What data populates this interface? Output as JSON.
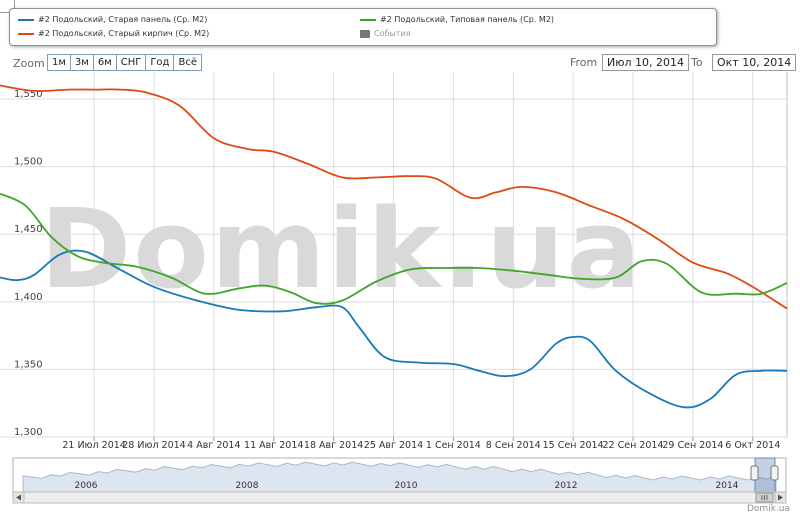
{
  "legend": {
    "items": [
      {
        "label": "#2 Подольский, Старая панель (Ср. M2)",
        "color": "#1a7ab8"
      },
      {
        "label": "#2 Подольский, Старый кирпич (Ср. M2)",
        "color": "#de4a12"
      },
      {
        "label": "#2 Подольский, Типовая панель (Ср. M2)",
        "color": "#3fa62a"
      },
      {
        "label": "События",
        "color": "#777777"
      }
    ]
  },
  "zoom": {
    "label": "Zoom",
    "buttons": [
      "1м",
      "3м",
      "6м",
      "СНГ",
      "Год",
      "Всё"
    ]
  },
  "range": {
    "from_label": "From",
    "from_value": "Июл 10, 2014",
    "to_label": "To",
    "to_value": "Окт 10, 2014"
  },
  "watermark": "Domik.ua",
  "credit": "Domik.ua",
  "colors": {
    "old_panel": "#1a7ab8",
    "old_brick": "#de4a12",
    "typical_panel": "#3fa62a",
    "grid": "#d8d8d8",
    "navigator_fill": "#dde5f0"
  },
  "chart_data": {
    "type": "line",
    "title": "",
    "xlabel": "",
    "ylabel": "",
    "ylim": [
      1.3,
      1.57
    ],
    "yticks": [
      1.3,
      1.35,
      1.4,
      1.45,
      1.5,
      1.55
    ],
    "ytick_labels": [
      "1,300",
      "1,350",
      "1,400",
      "1,450",
      "1,500",
      "1,550"
    ],
    "xlim": [
      "2014-07-10",
      "2014-10-10"
    ],
    "xticks": [
      {
        "date": "2014-07-21",
        "label": "21 Июл 2014"
      },
      {
        "date": "2014-07-28",
        "label": "28 Июл 2014"
      },
      {
        "date": "2014-08-04",
        "label": "4 Авг 2014"
      },
      {
        "date": "2014-08-11",
        "label": "11 Авг 2014"
      },
      {
        "date": "2014-08-18",
        "label": "18 Авг 2014"
      },
      {
        "date": "2014-08-25",
        "label": "25 Авг 2014"
      },
      {
        "date": "2014-09-01",
        "label": "1 Сен 2014"
      },
      {
        "date": "2014-09-08",
        "label": "8 Сен 2014"
      },
      {
        "date": "2014-09-15",
        "label": "15 Сен 2014"
      },
      {
        "date": "2014-09-22",
        "label": "22 Сен 2014"
      },
      {
        "date": "2014-09-29",
        "label": "29 Сен 2014"
      },
      {
        "date": "2014-10-06",
        "label": "6 Окт 2014"
      }
    ],
    "grid": true,
    "series": [
      {
        "name": "#2 Подольский, Старая панель (Ср. M2)",
        "color": "#1a7ab8",
        "x": [
          "2014-07-10",
          "2014-07-12",
          "2014-07-14",
          "2014-07-17",
          "2014-07-20",
          "2014-07-24",
          "2014-07-28",
          "2014-08-02",
          "2014-08-07",
          "2014-08-12",
          "2014-08-16",
          "2014-08-19",
          "2014-08-21",
          "2014-08-24",
          "2014-08-28",
          "2014-09-01",
          "2014-09-04",
          "2014-09-07",
          "2014-09-10",
          "2014-09-13",
          "2014-09-15",
          "2014-09-17",
          "2014-09-20",
          "2014-09-24",
          "2014-09-28",
          "2014-10-01",
          "2014-10-04",
          "2014-10-07",
          "2014-10-10"
        ],
        "values": [
          1.418,
          1.416,
          1.42,
          1.435,
          1.437,
          1.424,
          1.411,
          1.401,
          1.394,
          1.393,
          1.396,
          1.396,
          1.381,
          1.359,
          1.355,
          1.354,
          1.349,
          1.345,
          1.35,
          1.369,
          1.374,
          1.371,
          1.349,
          1.332,
          1.322,
          1.328,
          1.346,
          1.349,
          1.349
        ]
      },
      {
        "name": "#2 Подольский, Старый кирпич (Ср. M2)",
        "color": "#de4a12",
        "x": [
          "2014-07-10",
          "2014-07-14",
          "2014-07-18",
          "2014-07-21",
          "2014-07-24",
          "2014-07-27",
          "2014-07-31",
          "2014-08-04",
          "2014-08-08",
          "2014-08-11",
          "2014-08-15",
          "2014-08-19",
          "2014-08-23",
          "2014-08-27",
          "2014-08-30",
          "2014-09-03",
          "2014-09-06",
          "2014-09-09",
          "2014-09-13",
          "2014-09-17",
          "2014-09-21",
          "2014-09-25",
          "2014-09-29",
          "2014-10-03",
          "2014-10-06",
          "2014-10-10"
        ],
        "values": [
          1.56,
          1.556,
          1.557,
          1.557,
          1.557,
          1.555,
          1.545,
          1.521,
          1.513,
          1.511,
          1.502,
          1.492,
          1.492,
          1.493,
          1.491,
          1.477,
          1.481,
          1.485,
          1.481,
          1.471,
          1.461,
          1.446,
          1.429,
          1.421,
          1.411,
          1.395
        ]
      },
      {
        "name": "#2 Подольский, Типовая панель (Ср. M2)",
        "color": "#3fa62a",
        "x": [
          "2014-07-10",
          "2014-07-13",
          "2014-07-16",
          "2014-07-19",
          "2014-07-22",
          "2014-07-26",
          "2014-07-30",
          "2014-08-03",
          "2014-08-07",
          "2014-08-10",
          "2014-08-13",
          "2014-08-16",
          "2014-08-19",
          "2014-08-23",
          "2014-08-27",
          "2014-08-31",
          "2014-09-04",
          "2014-09-08",
          "2014-09-12",
          "2014-09-16",
          "2014-09-20",
          "2014-09-23",
          "2014-09-26",
          "2014-09-30",
          "2014-10-04",
          "2014-10-07",
          "2014-10-10"
        ],
        "values": [
          1.48,
          1.471,
          1.448,
          1.434,
          1.429,
          1.426,
          1.418,
          1.406,
          1.41,
          1.412,
          1.407,
          1.399,
          1.401,
          1.415,
          1.424,
          1.425,
          1.425,
          1.423,
          1.42,
          1.417,
          1.418,
          1.43,
          1.428,
          1.407,
          1.406,
          1.406,
          1.414
        ]
      }
    ],
    "navigator": {
      "years": [
        "2006",
        "2008",
        "2010",
        "2012",
        "2014"
      ]
    }
  }
}
